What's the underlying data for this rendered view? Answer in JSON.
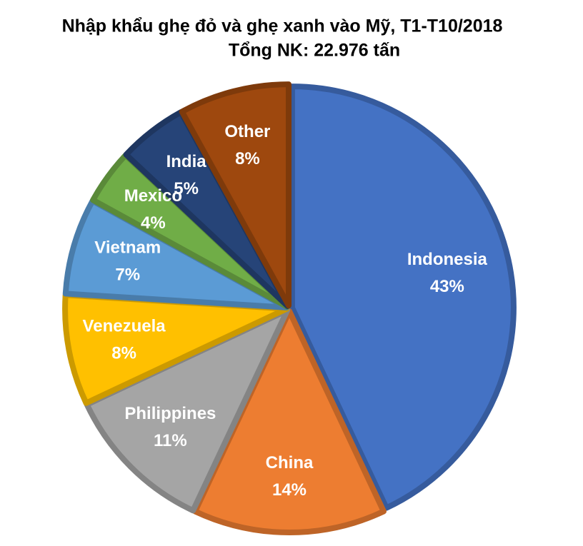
{
  "chart_data": {
    "type": "pie",
    "title": "Nhập khẩu ghẹ đỏ và ghẹ xanh vào Mỹ, T1-T10/2018",
    "subtitle": "Tổng NK: 22.976 tấn",
    "categories": [
      "Indonesia",
      "China",
      "Philippines",
      "Venezuela",
      "Vietnam",
      "Mexico",
      "India",
      "Other"
    ],
    "values": [
      43,
      14,
      11,
      8,
      7,
      4,
      5,
      8
    ],
    "value_labels": [
      "43%",
      "14%",
      "11%",
      "8%",
      "7%",
      "4%",
      "5%",
      "8%"
    ],
    "colors": [
      "#4472c4",
      "#ed7d31",
      "#a5a5a5",
      "#ffc000",
      "#5b9bd5",
      "#70ad47",
      "#264478",
      "#9e480e"
    ]
  }
}
